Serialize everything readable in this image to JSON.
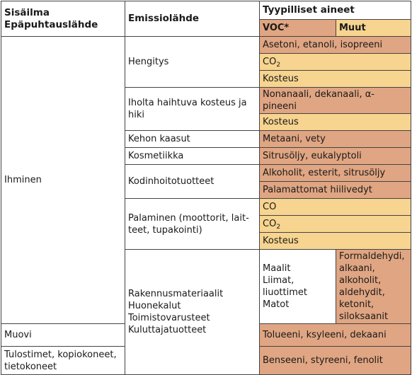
{
  "header": {
    "col1_line1": "Sisäilma",
    "col1_line2": "Epäpuhtauslähde",
    "col2": "Emissiolähde",
    "col3": "Tyypilliset aineet",
    "voc": "VOC*",
    "muut": "Muut"
  },
  "colors": {
    "voc": "#e0a582",
    "muut": "#f7d48f",
    "border": "#444444"
  },
  "group1": {
    "source": "Ihminen",
    "rows": {
      "hengitys": "Hengitys",
      "hengitys_a": "Asetoni, etanoli, isopreeni",
      "hengitys_b": "CO",
      "hengitys_b_sub": "2",
      "hengitys_c": "Kosteus",
      "iho": "Iholta haihtuva kosteus ja hiki",
      "iho_a": "Nonanaali, dekanaali, α-pineeni",
      "iho_b": "Kosteus",
      "kehon": "Kehon kaasut",
      "kehon_a": "Metaani, vety",
      "kosmetiikka": "Kosmetiikka",
      "kosmetiikka_a": "Sitrusöljy, eukalyptoli",
      "kodin": "Kodinhoitotuotteet",
      "kodin_a": "Alkoholit, esterit, sitrusöljy",
      "kodin_b": "Palamattomat hiilivedyt",
      "palaminen": "Palaminen (moottorit, lait-\nteet, tupakointi)",
      "palaminen_a": "CO",
      "palaminen_b": "CO",
      "palaminen_b_sub": "2",
      "palaminen_c": "Kosteus"
    }
  },
  "group2": {
    "source": "Rakennusmateriaalit\nHuonekalut\nToimistovarusteet\nKuluttajatuotteet",
    "rows": {
      "maalit": "Maalit\nLiimat, liuottimet\nMatot",
      "maalit_a": "Formaldehydi, alkaani,\nalkoholit, aldehydit,\nketonit, siloksaanit",
      "muovi": "Muovi",
      "muovi_a": "Tolueeni, ksyleeni, dekaani",
      "tulostimet": "Tulostimet, kopiokoneet,\ntietokoneet",
      "tulostimet_a": "Benseeni, styreeni, fenolit"
    }
  }
}
